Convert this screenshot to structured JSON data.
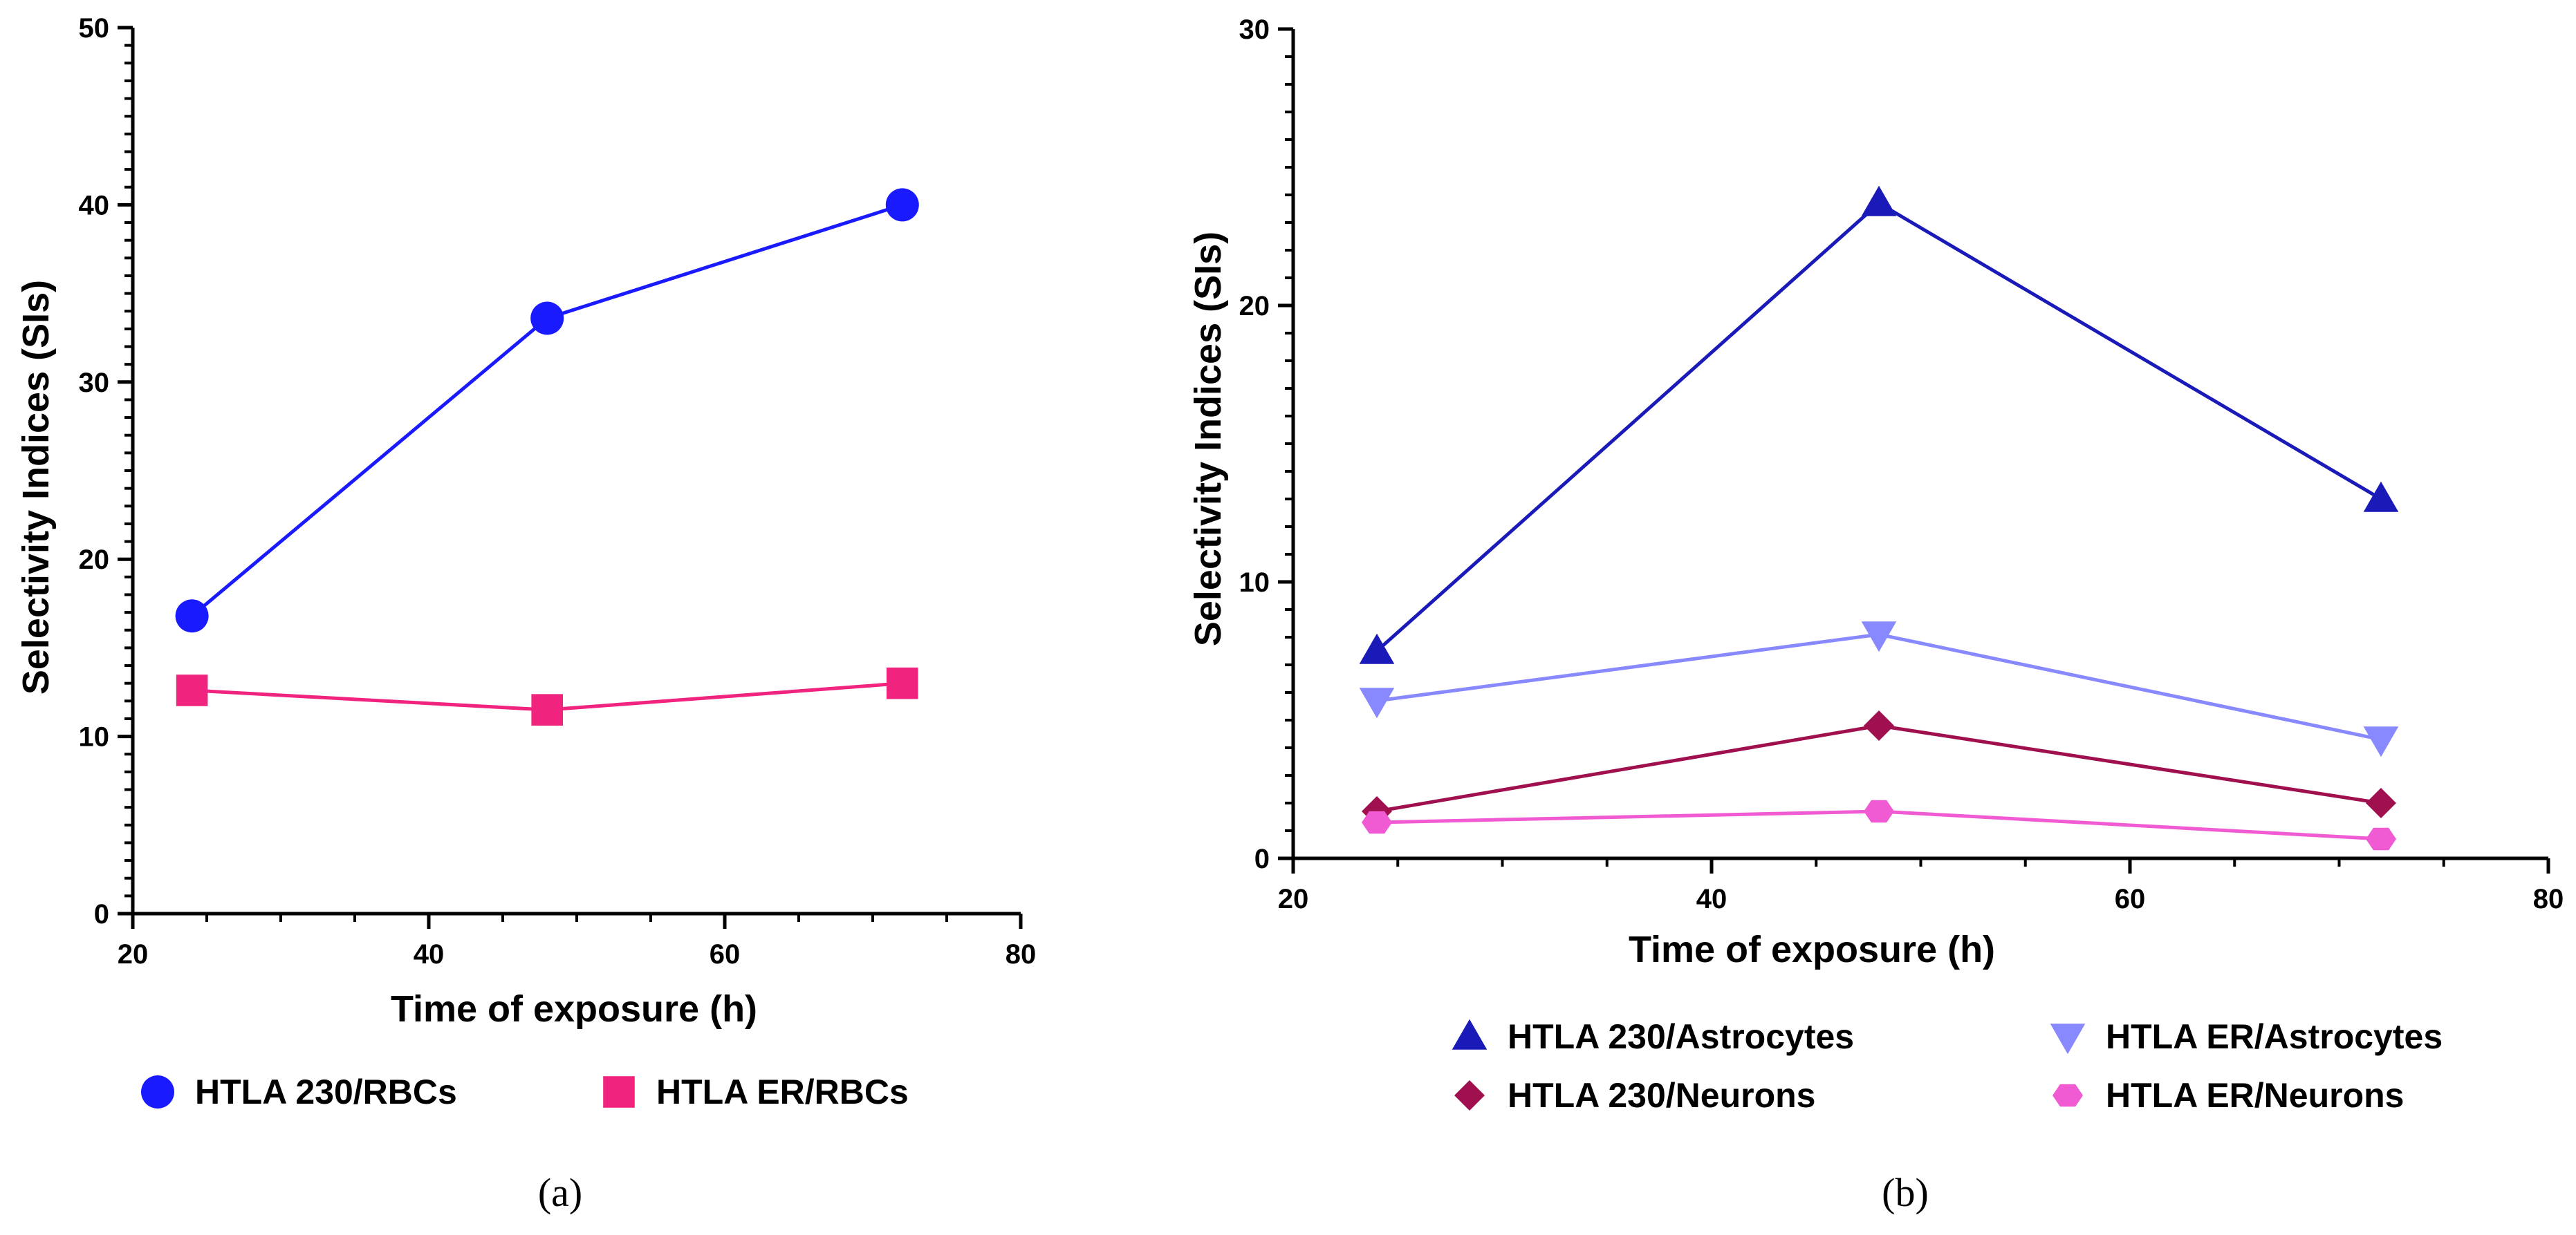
{
  "chart_data": [
    {
      "type": "line",
      "panel_label": "(a)",
      "xlabel": "Time of exposure (h)",
      "ylabel": "Selectivity Indices (SIs)",
      "xlim": [
        20,
        80
      ],
      "ylim": [
        0,
        50
      ],
      "xticks": [
        20,
        40,
        60,
        80
      ],
      "yticks": [
        0,
        10,
        20,
        30,
        40,
        50
      ],
      "x": [
        24,
        48,
        72
      ],
      "series": [
        {
          "name": "HTLA 230/RBCs",
          "values": [
            16.8,
            33.6,
            40.0
          ],
          "color": "#1a1aff",
          "marker": "circle"
        },
        {
          "name": "HTLA ER/RBCs",
          "values": [
            12.6,
            11.5,
            13.0
          ],
          "color": "#f0237f",
          "marker": "square"
        }
      ]
    },
    {
      "type": "line",
      "panel_label": "(b)",
      "xlabel": "Time of exposure (h)",
      "ylabel": "Selectivity Indices (SIs)",
      "xlim": [
        20,
        80
      ],
      "ylim": [
        0,
        30
      ],
      "xticks": [
        20,
        40,
        60,
        80
      ],
      "yticks": [
        0,
        10,
        20,
        30
      ],
      "x": [
        24,
        48,
        72
      ],
      "series": [
        {
          "name": "HTLA 230/Astrocytes",
          "values": [
            7.5,
            23.7,
            13.0
          ],
          "color": "#1a1ab8",
          "marker": "triangle-up"
        },
        {
          "name": "HTLA ER/Astrocytes",
          "values": [
            5.7,
            8.1,
            4.3
          ],
          "color": "#8888ff",
          "marker": "triangle-down"
        },
        {
          "name": "HTLA 230/Neurons",
          "values": [
            1.7,
            4.8,
            2.0
          ],
          "color": "#a0104e",
          "marker": "diamond"
        },
        {
          "name": "HTLA ER/Neurons",
          "values": [
            1.3,
            1.7,
            0.7
          ],
          "color": "#f05ad2",
          "marker": "hexagon"
        }
      ]
    }
  ]
}
